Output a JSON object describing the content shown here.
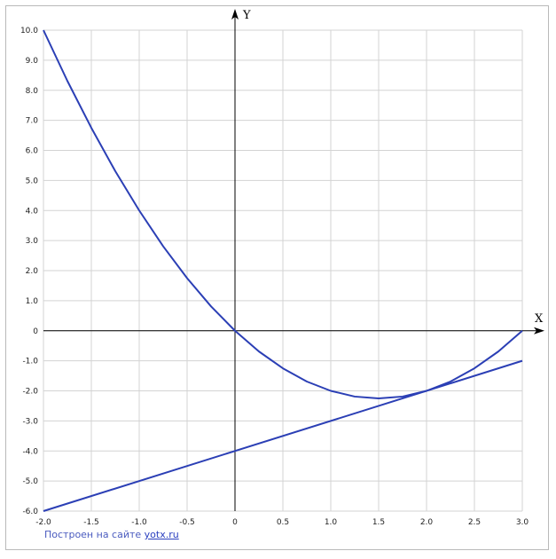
{
  "chart_data": {
    "type": "line",
    "xlabel": "X",
    "ylabel": "Y",
    "xlim": [
      -2.0,
      3.0
    ],
    "ylim": [
      -6.0,
      10.0
    ],
    "grid": true,
    "x_ticks": [
      "-2.0",
      "-1.5",
      "-1.0",
      "-0.5",
      "0",
      "0.5",
      "1.0",
      "1.5",
      "2.0",
      "2.5",
      "3.0"
    ],
    "y_ticks": [
      "10.0",
      "9.0",
      "8.0",
      "7.0",
      "6.0",
      "5.0",
      "4.0",
      "3.0",
      "2.0",
      "1.0",
      "0",
      "-1.0",
      "-2.0",
      "-3.0",
      "-4.0",
      "-5.0",
      "-6.0"
    ],
    "series": [
      {
        "x": [
          -2.0,
          -1.75,
          -1.5,
          -1.25,
          -1.0,
          -0.75,
          -0.5,
          -0.25,
          0.0,
          0.25,
          0.5,
          0.75,
          1.0,
          1.25,
          1.5,
          1.75,
          2.0,
          2.25,
          2.5,
          2.75,
          3.0
        ],
        "y": [
          10.0,
          8.31,
          6.75,
          5.31,
          4.0,
          2.81,
          1.75,
          0.81,
          0.0,
          -0.69,
          -1.25,
          -1.69,
          -2.0,
          -2.19,
          -2.25,
          -2.19,
          -2.0,
          -1.69,
          -1.25,
          -0.69,
          0.0
        ],
        "color": "#2b3fb5"
      },
      {
        "x": [
          -2.0,
          3.0
        ],
        "y": [
          -6.0,
          -1.0
        ],
        "color": "#2b3fb5"
      }
    ]
  },
  "footer": {
    "credit_text": "Построен на сайте ",
    "credit_link": "yotx.ru"
  }
}
